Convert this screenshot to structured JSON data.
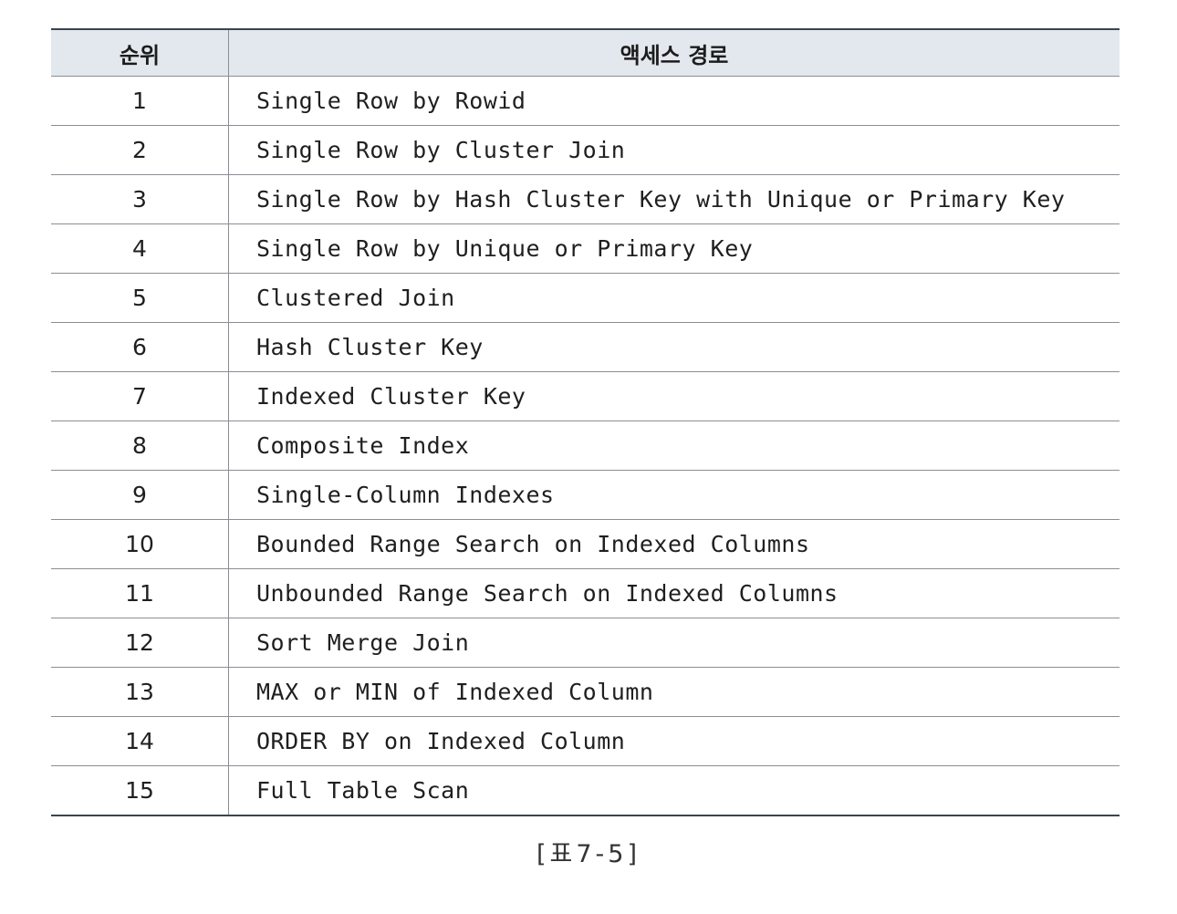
{
  "table": {
    "headers": {
      "rank": "순위",
      "path": "액세스 경로"
    },
    "rows": [
      {
        "rank": "1",
        "path": "Single Row by Rowid"
      },
      {
        "rank": "2",
        "path": "Single Row by Cluster Join"
      },
      {
        "rank": "3",
        "path": "Single Row by Hash Cluster Key with Unique or Primary Key"
      },
      {
        "rank": "4",
        "path": "Single Row by Unique or Primary Key"
      },
      {
        "rank": "5",
        "path": "Clustered Join"
      },
      {
        "rank": "6",
        "path": "Hash Cluster Key"
      },
      {
        "rank": "7",
        "path": "Indexed Cluster Key"
      },
      {
        "rank": "8",
        "path": "Composite Index"
      },
      {
        "rank": "9",
        "path": "Single-Column Indexes"
      },
      {
        "rank": "10",
        "path": "Bounded Range Search on Indexed Columns"
      },
      {
        "rank": "11",
        "path": "Unbounded Range Search on Indexed Columns"
      },
      {
        "rank": "12",
        "path": "Sort Merge Join"
      },
      {
        "rank": "13",
        "path": "MAX or MIN of Indexed Column"
      },
      {
        "rank": "14",
        "path": "ORDER BY on Indexed Column"
      },
      {
        "rank": "15",
        "path": "Full Table Scan"
      }
    ]
  },
  "caption": "[표7-5]"
}
